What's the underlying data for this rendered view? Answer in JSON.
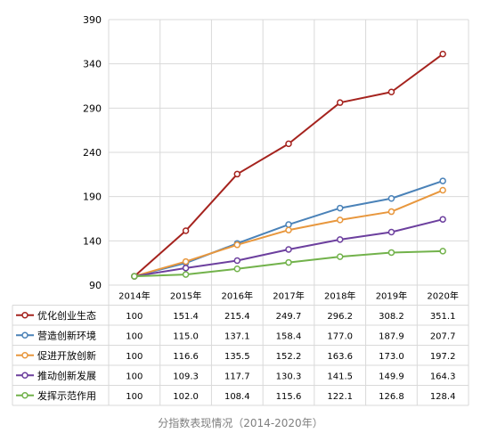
{
  "caption": "分指数表现情况（2014-2020年）",
  "chart_data": {
    "type": "line",
    "categories": [
      "2014年",
      "2015年",
      "2016年",
      "2017年",
      "2018年",
      "2019年",
      "2020年"
    ],
    "ylim": [
      90,
      390
    ],
    "yticks": [
      90,
      140,
      190,
      240,
      290,
      340,
      390
    ],
    "grid": true,
    "legend_placement": "data table left",
    "series": [
      {
        "name": "优化创业生态",
        "color": "#a5231e",
        "values": [
          100,
          151.4,
          215.4,
          249.7,
          296.2,
          308.2,
          351.1
        ]
      },
      {
        "name": "营造创新环境",
        "color": "#4a82b8",
        "values": [
          100,
          115.0,
          137.1,
          158.4,
          177.0,
          187.9,
          207.7
        ]
      },
      {
        "name": "促进开放创新",
        "color": "#e8973d",
        "values": [
          100,
          116.6,
          135.5,
          152.2,
          163.6,
          173.0,
          197.2
        ]
      },
      {
        "name": "推动创新发展",
        "color": "#6c3f9e",
        "values": [
          100,
          109.3,
          117.7,
          130.3,
          141.5,
          149.9,
          164.3
        ]
      },
      {
        "name": "发挥示范作用",
        "color": "#72b24b",
        "values": [
          100,
          102.0,
          108.4,
          115.6,
          122.1,
          126.8,
          128.4
        ]
      }
    ],
    "table_labels": [
      [
        "100",
        "151.4",
        "215.4",
        "249.7",
        "296.2",
        "308.2",
        "351.1"
      ],
      [
        "100",
        "115.0",
        "137.1",
        "158.4",
        "177.0",
        "187.9",
        "207.7"
      ],
      [
        "100",
        "116.6",
        "135.5",
        "152.2",
        "163.6",
        "173.0",
        "197.2"
      ],
      [
        "100",
        "109.3",
        "117.7",
        "130.3",
        "141.5",
        "149.9",
        "164.3"
      ],
      [
        "100",
        "102.0",
        "108.4",
        "115.6",
        "122.1",
        "126.8",
        "128.4"
      ]
    ]
  }
}
